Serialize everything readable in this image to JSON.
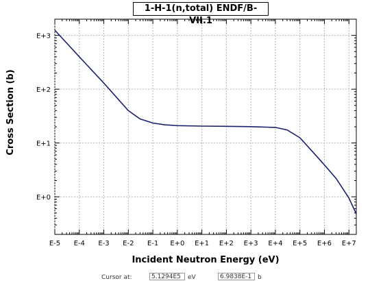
{
  "chart_data": {
    "type": "line",
    "title": "1-H-1(n,total) ENDF/B-VII.1",
    "xlabel": "Incident Neutron Energy (eV)",
    "ylabel": "Cross Section (b)",
    "x_scale": "log",
    "y_scale": "log",
    "xlim": [
      1e-05,
      20000000.0
    ],
    "ylim": [
      0.2,
      2000
    ],
    "x_ticks": [
      "E-5",
      "E-4",
      "E-3",
      "E-2",
      "E-1",
      "E+0",
      "E+1",
      "E+2",
      "E+3",
      "E+4",
      "E+5",
      "E+6",
      "E+7"
    ],
    "y_ticks": [
      "E+0",
      "E+1",
      "E+2",
      "E+3"
    ],
    "grid": true,
    "line_color": "#1a1f6e",
    "series": [
      {
        "x": [
          1e-05,
          0.0001,
          0.001,
          0.01,
          0.03,
          0.1,
          0.3,
          1,
          10,
          100,
          1000,
          10000,
          30000,
          100000,
          300000,
          1000000,
          3000000,
          10000000,
          20000000
        ],
        "y": [
          1250,
          400,
          130,
          40,
          28,
          23.5,
          21.8,
          21.0,
          20.6,
          20.4,
          20.1,
          19.5,
          17.5,
          12.5,
          7.2,
          3.9,
          2.2,
          0.95,
          0.48
        ]
      }
    ]
  },
  "status": {
    "cursor_label": "Cursor at:",
    "x_value": "5.1294E5",
    "x_unit": "eV",
    "y_value": "6.9838E-1",
    "y_unit": "b"
  }
}
